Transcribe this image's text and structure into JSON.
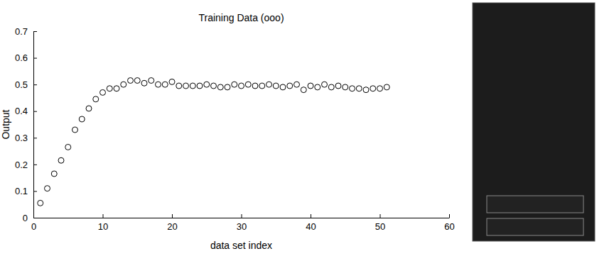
{
  "chart_data": {
    "type": "scatter",
    "title": "Training Data (ooo)",
    "x_label": "data set index",
    "y_label": "Output",
    "x": [
      1,
      2,
      3,
      4,
      5,
      6,
      7,
      8,
      9,
      10,
      11,
      12,
      13,
      14,
      15,
      16,
      17,
      18,
      19,
      20,
      21,
      22,
      23,
      24,
      25,
      26,
      27,
      28,
      29,
      30,
      31,
      32,
      33,
      34,
      35,
      36,
      37,
      38,
      39,
      40,
      41,
      42,
      43,
      44,
      45,
      46,
      47,
      48,
      49,
      50,
      51
    ],
    "values": [
      0.055,
      0.11,
      0.165,
      0.215,
      0.265,
      0.33,
      0.37,
      0.41,
      0.445,
      0.47,
      0.485,
      0.485,
      0.5,
      0.515,
      0.515,
      0.505,
      0.515,
      0.5,
      0.5,
      0.51,
      0.495,
      0.495,
      0.495,
      0.495,
      0.5,
      0.495,
      0.49,
      0.49,
      0.5,
      0.495,
      0.5,
      0.495,
      0.495,
      0.5,
      0.495,
      0.49,
      0.495,
      0.5,
      0.48,
      0.495,
      0.49,
      0.5,
      0.49,
      0.495,
      0.49,
      0.485,
      0.485,
      0.48,
      0.485,
      0.485,
      0.49
    ],
    "color": "#000000",
    "marker": "circle",
    "xlim": [
      0,
      60
    ],
    "xticks": [
      0,
      10,
      20,
      30,
      40,
      50,
      60
    ],
    "ylim": [
      0,
      0.7
    ],
    "yticks": [
      0,
      0.1,
      0.2,
      0.3,
      0.4,
      0.5,
      0.6,
      0.7
    ],
    "grid": false
  }
}
